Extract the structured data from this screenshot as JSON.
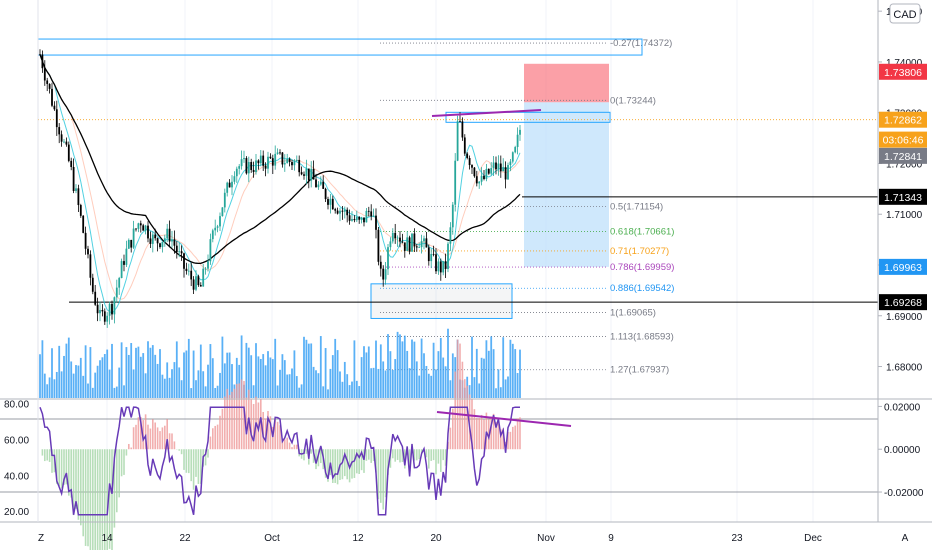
{
  "currency_badge": "CAD",
  "price_axis": {
    "ticks": [
      "1.75000",
      "1.74000",
      "1.73000",
      "1.72000",
      "1.71000",
      "1.70000",
      "1.69000",
      "1.68000"
    ],
    "values": [
      1.75,
      1.74,
      1.73,
      1.72,
      1.71,
      1.7,
      1.69,
      1.68
    ],
    "range": [
      1.6738,
      1.7522
    ]
  },
  "price_tags": [
    {
      "label": "1.73806",
      "value": 1.73806,
      "bg": "#f23645",
      "fg": "#ffffff"
    },
    {
      "label": "1.72862",
      "value": 1.72862,
      "bg": "#f7a21b",
      "fg": "#ffffff"
    },
    {
      "label": "03:06:46",
      "value": 1.7247,
      "bg": "#f7a21b",
      "fg": "#ffffff"
    },
    {
      "label": "1.72841",
      "value": 1.7215,
      "bg": "#787b86",
      "fg": "#ffffff"
    },
    {
      "label": "1.71343",
      "value": 1.71343,
      "bg": "#000000",
      "fg": "#ffffff"
    },
    {
      "label": "1.69963",
      "value": 1.69963,
      "bg": "#2196f3",
      "fg": "#ffffff"
    },
    {
      "label": "1.69268",
      "value": 1.69268,
      "bg": "#000000",
      "fg": "#ffffff"
    }
  ],
  "fib_levels": [
    {
      "label": "-0.27(1.74372)",
      "value": 1.74372,
      "color": "#787b86"
    },
    {
      "label": "0(1.73244)",
      "value": 1.73244,
      "color": "#787b86"
    },
    {
      "label": "0.5(1.71154)",
      "value": 1.71154,
      "color": "#787b86"
    },
    {
      "label": "0.618(1.70661)",
      "value": 1.70661,
      "color": "#4caf50"
    },
    {
      "label": "0.71(1.70277)",
      "value": 1.70277,
      "color": "#f7a21b"
    },
    {
      "label": "0.786(1.69959)",
      "value": 1.69959,
      "color": "#ab47bc"
    },
    {
      "label": "0.886(1.69542)",
      "value": 1.69542,
      "color": "#2196f3"
    },
    {
      "label": "1(1.69065)",
      "value": 1.69065,
      "color": "#787b86"
    },
    {
      "label": "1.113(1.68593)",
      "value": 1.68593,
      "color": "#787b86"
    },
    {
      "label": "1.27(1.67937)",
      "value": 1.67937,
      "color": "#787b86"
    }
  ],
  "osc_axis": {
    "left_ticks": [
      "80.00",
      "60.00",
      "40.00",
      "20.00"
    ],
    "left_values": [
      80,
      60,
      40,
      20
    ],
    "left_range": [
      14,
      82
    ],
    "right_ticks": [
      "0.02000",
      "0.00000",
      "-0.02000"
    ],
    "right_values": [
      0.02,
      0.0,
      -0.02
    ],
    "right_range": [
      -0.034,
      0.023
    ]
  },
  "time_axis": {
    "labels": [
      "14",
      "22",
      "Oct",
      "12",
      "20",
      "Nov",
      "9",
      "23",
      "Dec"
    ],
    "corner_left": "Z",
    "corner_right": "A"
  },
  "chart_data": {
    "type": "candlestick",
    "symbol_currency": "CAD",
    "y_axis_price_range": [
      1.6738,
      1.7522
    ],
    "last_price": 1.72862,
    "countdown": "03:06:46",
    "key_levels": {
      "resistance_1": 1.73806,
      "horizontal_support": 1.69268,
      "horizontal_line": 1.71343,
      "stop_target_lower": 1.69963
    },
    "fibonacci": [
      {
        "ratio": -0.27,
        "price": 1.74372
      },
      {
        "ratio": 0,
        "price": 1.73244
      },
      {
        "ratio": 0.5,
        "price": 1.71154
      },
      {
        "ratio": 0.618,
        "price": 1.70661
      },
      {
        "ratio": 0.71,
        "price": 1.70277
      },
      {
        "ratio": 0.786,
        "price": 1.69959
      },
      {
        "ratio": 0.886,
        "price": 1.69542
      },
      {
        "ratio": 1,
        "price": 1.69065
      },
      {
        "ratio": 1.113,
        "price": 1.68593
      },
      {
        "ratio": 1.27,
        "price": 1.67937
      }
    ],
    "oscillator": {
      "left_range": [
        14,
        82
      ],
      "right_range": [
        -0.034,
        0.023
      ],
      "levels": [
        60,
        40
      ]
    },
    "colors": {
      "up": "#26a69a",
      "down": "#000000",
      "volume": "#2196f3",
      "rsi": "#673ab7",
      "ma": "#000000",
      "trendline": "#9c27b0",
      "short_stop": "#f7525f",
      "short_target": "#bbdefb"
    }
  }
}
